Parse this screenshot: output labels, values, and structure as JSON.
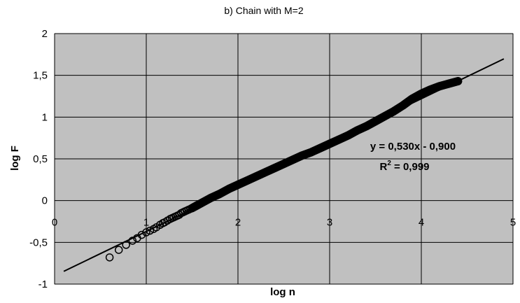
{
  "chart_data": {
    "type": "scatter",
    "title": "b) Chain with M=2",
    "xlabel": "log n",
    "ylabel": "log F",
    "xlim": [
      0,
      5
    ],
    "ylim": [
      -1,
      2
    ],
    "x_ticks": [
      0,
      1,
      2,
      3,
      4,
      5
    ],
    "x_tick_labels": [
      "0",
      "1",
      "2",
      "3",
      "4",
      "5"
    ],
    "y_ticks": [
      -1,
      -0.5,
      0,
      0.5,
      1,
      1.5,
      2
    ],
    "y_tick_labels": [
      "-1",
      "-0,5",
      "0",
      "0,5",
      "1",
      "1,5",
      "2"
    ],
    "grid": true,
    "background": "#c0c0c0",
    "series": [
      {
        "marker": "open-circle",
        "x": [
          0.6,
          0.7,
          0.78,
          0.85,
          0.9,
          0.95,
          1.0,
          1.04,
          1.08,
          1.11,
          1.15,
          1.18,
          1.2,
          1.23,
          1.26,
          1.28,
          1.3,
          1.32,
          1.34,
          1.36,
          1.38,
          1.4,
          1.42,
          1.44,
          1.46,
          1.48,
          1.5,
          1.55,
          1.6,
          1.7,
          1.8,
          1.9,
          2.0,
          2.1,
          2.2,
          2.3,
          2.4,
          2.5,
          2.6,
          2.7,
          2.8,
          2.9,
          3.0,
          3.1,
          3.2,
          3.3,
          3.4,
          3.5,
          3.6,
          3.7,
          3.8,
          3.9,
          4.0,
          4.1,
          4.2,
          4.3,
          4.4
        ],
        "y": [
          -0.68,
          -0.59,
          -0.53,
          -0.48,
          -0.45,
          -0.41,
          -0.38,
          -0.36,
          -0.34,
          -0.32,
          -0.29,
          -0.27,
          -0.26,
          -0.24,
          -0.22,
          -0.21,
          -0.2,
          -0.19,
          -0.18,
          -0.17,
          -0.15,
          -0.14,
          -0.13,
          -0.12,
          -0.11,
          -0.1,
          -0.09,
          -0.06,
          -0.03,
          0.03,
          0.08,
          0.14,
          0.19,
          0.24,
          0.29,
          0.34,
          0.39,
          0.44,
          0.49,
          0.54,
          0.58,
          0.63,
          0.68,
          0.73,
          0.78,
          0.84,
          0.89,
          0.95,
          1.01,
          1.07,
          1.14,
          1.22,
          1.28,
          1.33,
          1.37,
          1.4,
          1.43
        ]
      }
    ],
    "trendline": {
      "slope": 0.53,
      "intercept": -0.9,
      "x_range": [
        0.1,
        4.9
      ]
    },
    "annotations": {
      "equation": "y = 0,530x - 0,900",
      "r2_prefix": "R",
      "r2_sup": "2",
      "r2_value": " = 0,999"
    }
  }
}
